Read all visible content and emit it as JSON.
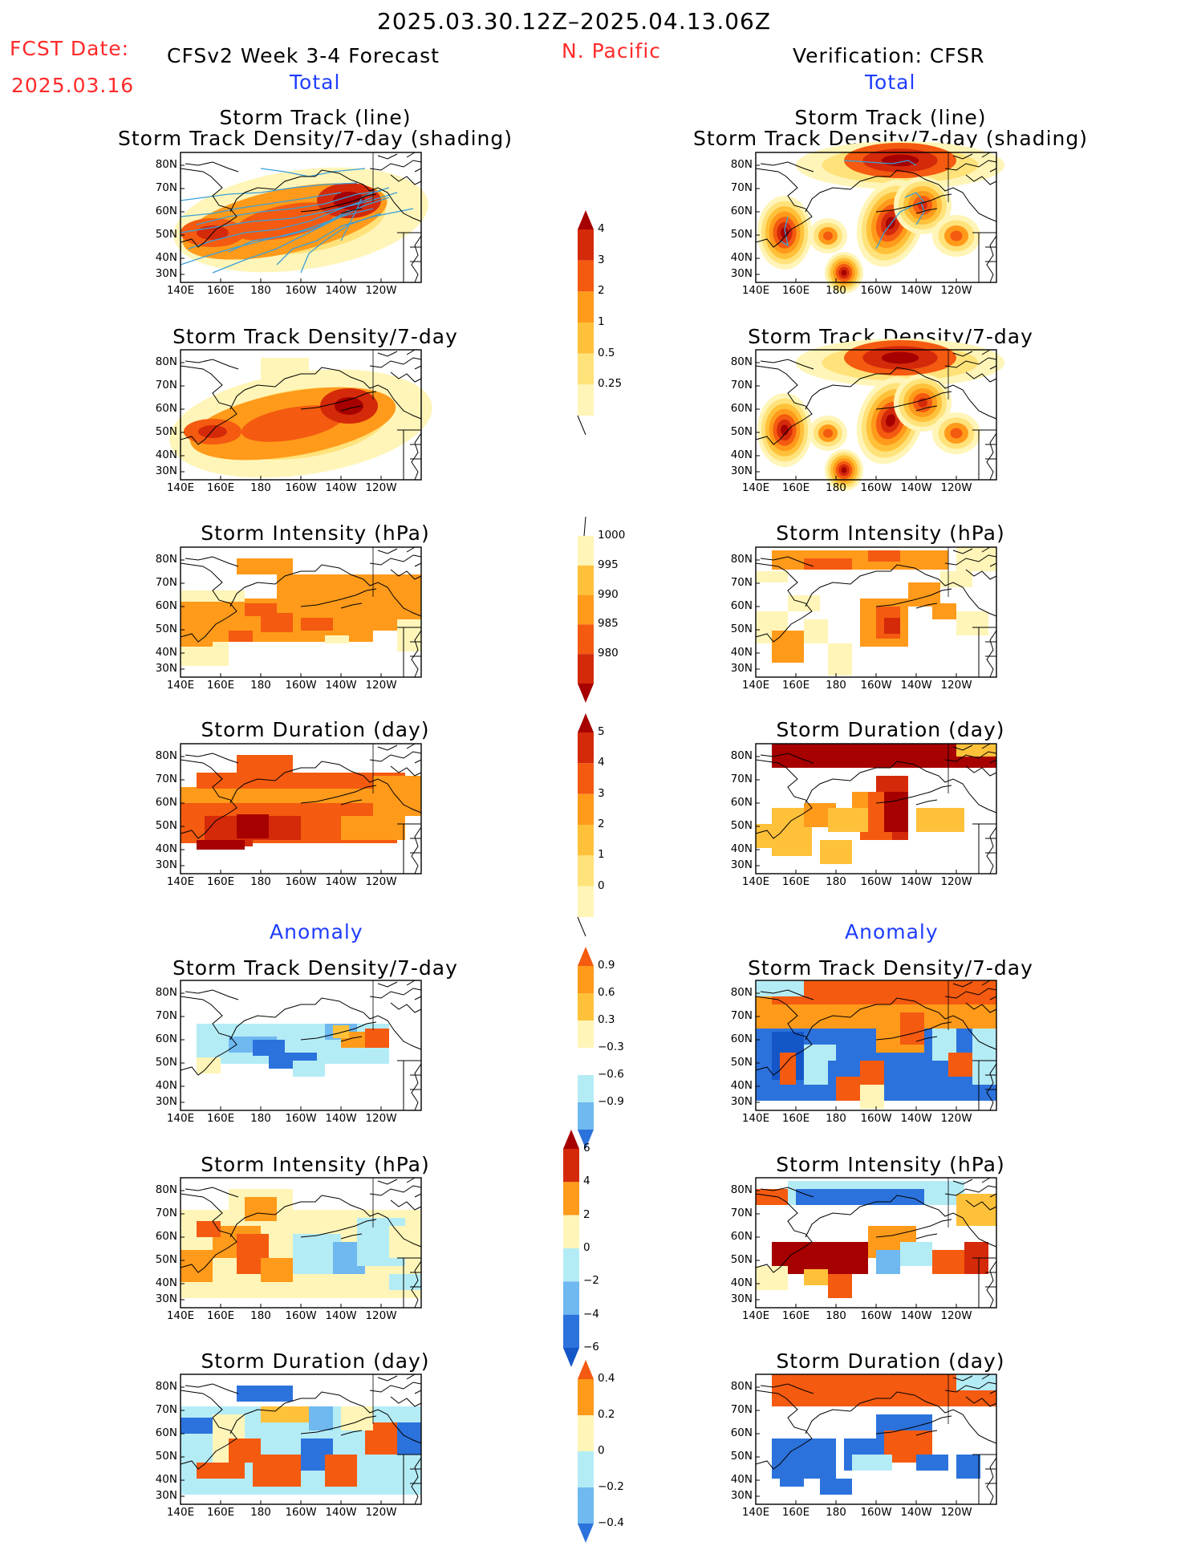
{
  "header": {
    "period": "2025.03.30.12Z–2025.04.13.06Z",
    "fcst_label": "FCST Date:",
    "fcst_date": "2025.03.16",
    "model": "CFSv2 Week 3-4 Forecast",
    "region": "N. Pacific",
    "verification": "Verification: CFSR",
    "total_left": "Total",
    "total_right": "Total",
    "anomaly_left": "Anomaly",
    "anomaly_right": "Anomaly"
  },
  "map_axes": {
    "lat_labels": [
      "80N",
      "70N",
      "60N",
      "50N",
      "40N",
      "30N"
    ],
    "lon_labels": [
      "140E",
      "160E",
      "180",
      "160W",
      "140W",
      "120W"
    ]
  },
  "titles": {
    "r1a": "Storm Track (line)",
    "r1b": "Storm Track Density/7-day (shading)",
    "r2": "Storm Track Density/7-day",
    "r3": "Storm Intensity (hPa)",
    "r4": "Storm Duration (day)",
    "r5": "Storm Track Density/7-day",
    "r6": "Storm Intensity (hPa)",
    "r7": "Storm Duration (day)"
  },
  "colorbars": {
    "density_total": [
      "4",
      "3",
      "2",
      "1",
      "0.5",
      "0.25"
    ],
    "intensity_total": [
      "1000",
      "995",
      "990",
      "985",
      "980"
    ],
    "duration_total": [
      "5",
      "4",
      "3",
      "2",
      "1",
      "0"
    ],
    "density_anom": [
      "0.9",
      "0.6",
      "0.3",
      "−0.3",
      "−0.6",
      "−0.9"
    ],
    "intensity_anom": [
      "6",
      "4",
      "2",
      "0",
      "−2",
      "−4",
      "−6"
    ],
    "duration_anom": [
      "0.4",
      "0.2",
      "0",
      "−0.2",
      "−0.4"
    ]
  },
  "palette": {
    "lightyellow": "#fff5b8",
    "yellow": "#ffe27a",
    "lightorange": "#ffc13a",
    "orange": "#ff9a1a",
    "redorange": "#f45a10",
    "red": "#d42a0a",
    "darkred": "#a60000",
    "lightblue": "#b4ecf6",
    "medblue": "#6fb8f0",
    "blue": "#2c72dc",
    "darkblue": "#1456c8",
    "track": "#3aa0d8",
    "coast": "#000000"
  }
}
